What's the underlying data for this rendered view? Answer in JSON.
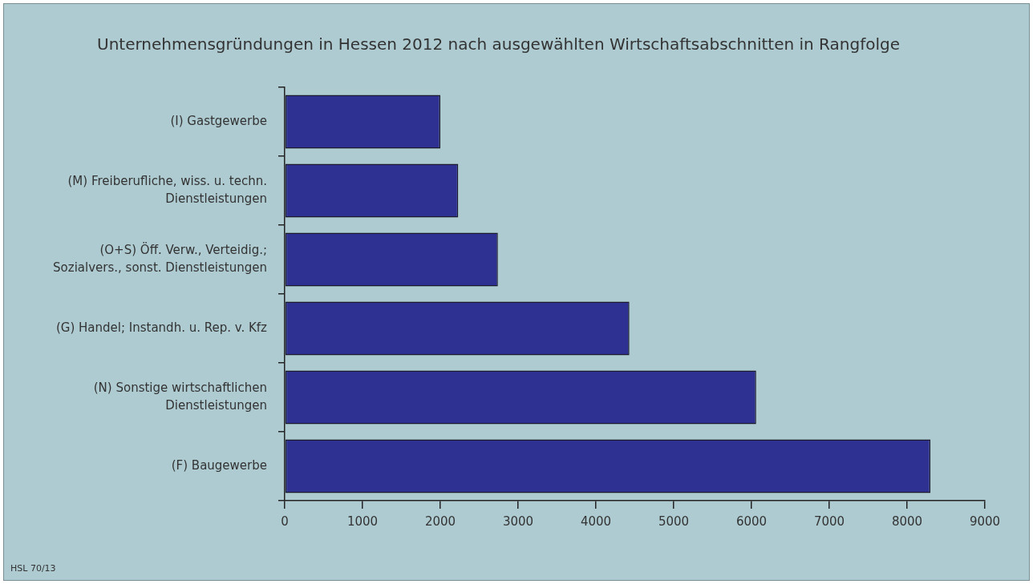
{
  "chart_data": {
    "type": "bar",
    "orientation": "horizontal",
    "title": "Unternehmensgründungen in Hessen 2012 nach ausgewählten Wirtschaftsabschnitten in Rangfolge",
    "categories": [
      "(I) Gastgewerbe",
      "(M) Freiberufliche, wiss. u. techn.\nDienstleistungen",
      "(O+S) Öff. Verw., Verteidig.;\nSozialvers., sonst. Dienstleistungen",
      "(G) Handel; Instandh. u. Rep. v. Kfz",
      "(N) Sonstige wirtschaftlichen\nDienstleistungen",
      "(F) Baugewerbe"
    ],
    "values": [
      2000,
      2230,
      2740,
      4430,
      6060,
      8300
    ],
    "color": "#2e3192",
    "xlim": [
      0,
      9000
    ],
    "xticks": [
      0,
      1000,
      2000,
      3000,
      4000,
      5000,
      6000,
      7000,
      8000,
      9000
    ],
    "grid": false,
    "legend": false,
    "annotations": [
      "HSL 70/13"
    ]
  }
}
